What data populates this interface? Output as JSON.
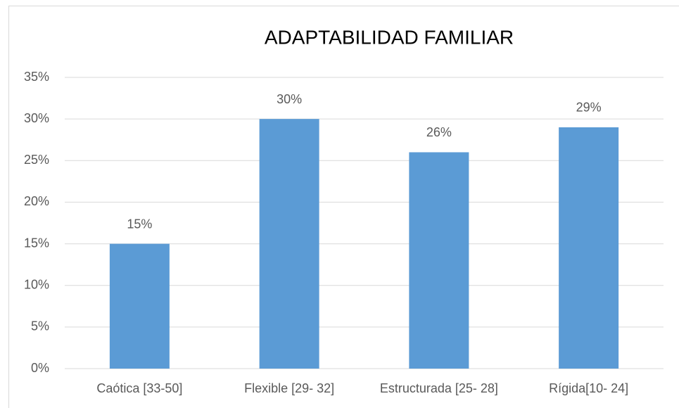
{
  "chart_data": {
    "type": "bar",
    "title": "ADAPTABILIDAD FAMILIAR",
    "categories": [
      "Caótica [33-50]",
      "Flexible [29- 32]",
      "Estructurada [25- 28]",
      "Rígida[10- 24]"
    ],
    "values": [
      15,
      30,
      26,
      29
    ],
    "value_labels": [
      "15%",
      "30%",
      "26%",
      "29%"
    ],
    "color": "#5b9bd5",
    "ylim": [
      0,
      35
    ],
    "yticks": [
      {
        "value": 0,
        "label": "0%"
      },
      {
        "value": 5,
        "label": "5%"
      },
      {
        "value": 10,
        "label": "10%"
      },
      {
        "value": 15,
        "label": "15%"
      },
      {
        "value": 20,
        "label": "20%"
      },
      {
        "value": 25,
        "label": "25%"
      },
      {
        "value": 30,
        "label": "30%"
      },
      {
        "value": 35,
        "label": "35%"
      }
    ],
    "grid": true
  }
}
